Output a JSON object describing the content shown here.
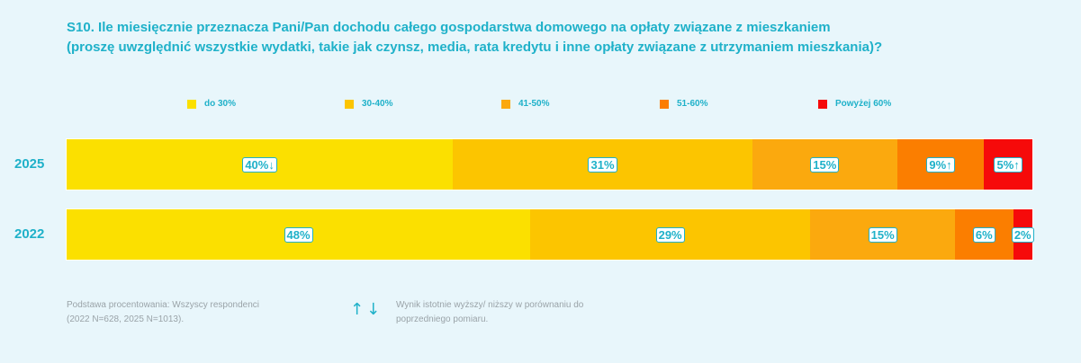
{
  "title": {
    "line1": "S10. Ile miesięcznie przeznacza Pani/Pan dochodu całego gospodarstwa domowego na opłaty związane z mieszkaniem",
    "line2": "(proszę uwzględnić wszystkie wydatki, takie jak czynsz, media, rata kredytu i inne opłaty związane z utrzymaniem mieszkania)?"
  },
  "chart_data": {
    "type": "bar",
    "stacked": true,
    "orientation": "horizontal",
    "unit": "%",
    "categories": [
      "2025",
      "2022"
    ],
    "series": [
      {
        "name": "do 30%",
        "color": "#fbe000",
        "values": [
          40,
          48
        ],
        "labels": [
          "40%↓",
          "48%"
        ]
      },
      {
        "name": "30-40%",
        "color": "#fcc500",
        "values": [
          31,
          29
        ],
        "labels": [
          "31%",
          "29%"
        ]
      },
      {
        "name": "41-50%",
        "color": "#fba90e",
        "values": [
          15,
          15
        ],
        "labels": [
          "15%",
          "15%"
        ]
      },
      {
        "name": "51-60%",
        "color": "#fb7e00",
        "values": [
          9,
          6
        ],
        "labels": [
          "9%↑",
          "6%"
        ]
      },
      {
        "name": "Powyżej 60%",
        "color": "#f60a0a",
        "values": [
          5,
          2
        ],
        "labels": [
          "5%↑",
          "2%"
        ]
      }
    ],
    "legend_position": "top"
  },
  "footnote": {
    "line1": "Podstawa procentowania: Wszyscy respondenci",
    "line2": "(2022 N=628, 2025 N=1013)."
  },
  "arrows": {
    "symbols": "↑↓",
    "line1": "Wynik istotnie wyższy/ niższy w porównaniu do",
    "line2": "poprzedniego pomiaru."
  }
}
